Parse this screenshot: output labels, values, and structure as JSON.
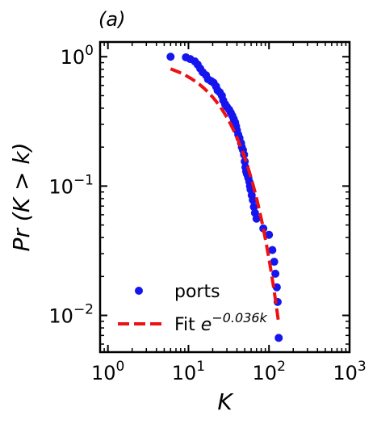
{
  "chart_data": {
    "type": "scatter",
    "panel_label": "(a)",
    "xlabel": "K",
    "ylabel": "Pr (K > k)",
    "xscale": "log",
    "yscale": "log",
    "xlim": [
      0.8,
      1000
    ],
    "ylim": [
      0.0052,
      1.3
    ],
    "xticks": [
      {
        "value": 1,
        "base": "10",
        "exp": "0"
      },
      {
        "value": 10,
        "base": "10",
        "exp": "1"
      },
      {
        "value": 100,
        "base": "10",
        "exp": "2"
      },
      {
        "value": 1000,
        "base": "10",
        "exp": "3"
      }
    ],
    "yticks": [
      {
        "value": 0.01,
        "base": "10",
        "exp": "−2"
      },
      {
        "value": 0.1,
        "base": "10",
        "exp": "−1"
      },
      {
        "value": 1,
        "base": "10",
        "exp": "0"
      }
    ],
    "grid": false,
    "legend_position": "bottom-left",
    "series": [
      {
        "name": "ports",
        "kind": "scatter",
        "color": "#1515f0",
        "points": [
          [
            6,
            1.0
          ],
          [
            9.3,
            0.99
          ],
          [
            10.5,
            0.96
          ],
          [
            12,
            0.92
          ],
          [
            13,
            0.87
          ],
          [
            14,
            0.81
          ],
          [
            15,
            0.76
          ],
          [
            16.5,
            0.72
          ],
          [
            17.5,
            0.67
          ],
          [
            19,
            0.65
          ],
          [
            20.5,
            0.63
          ],
          [
            22,
            0.59
          ],
          [
            23,
            0.55
          ],
          [
            24.5,
            0.53
          ],
          [
            26,
            0.5
          ],
          [
            27,
            0.46
          ],
          [
            28.5,
            0.43
          ],
          [
            30,
            0.41
          ],
          [
            32,
            0.39
          ],
          [
            33.5,
            0.37
          ],
          [
            35,
            0.35
          ],
          [
            36.5,
            0.33
          ],
          [
            38,
            0.31
          ],
          [
            39,
            0.29
          ],
          [
            40,
            0.27
          ],
          [
            41.5,
            0.25
          ],
          [
            43,
            0.235
          ],
          [
            45,
            0.215
          ],
          [
            46,
            0.2
          ],
          [
            47.5,
            0.19
          ],
          [
            49,
            0.175
          ],
          [
            50,
            0.155
          ],
          [
            51,
            0.14
          ],
          [
            52,
            0.13
          ],
          [
            53,
            0.125
          ],
          [
            54.5,
            0.12
          ],
          [
            55.5,
            0.115
          ],
          [
            57,
            0.108
          ],
          [
            58,
            0.1
          ],
          [
            59,
            0.094
          ],
          [
            61,
            0.085
          ],
          [
            63,
            0.078
          ],
          [
            65,
            0.069
          ],
          [
            67,
            0.062
          ],
          [
            70,
            0.056
          ],
          [
            85,
            0.047
          ],
          [
            100,
            0.042
          ],
          [
            110,
            0.032
          ],
          [
            116,
            0.026
          ],
          [
            120,
            0.021
          ],
          [
            125,
            0.0165
          ],
          [
            128,
            0.0127
          ],
          [
            132,
            0.0067
          ]
        ]
      },
      {
        "name": "Fit",
        "name_expr_base": "e",
        "name_expr_exp": "−0.036k",
        "kind": "line",
        "style": "dashed",
        "color": "#ee1111",
        "function": "exp",
        "coefficient": -0.036,
        "x_range": [
          6,
          132
        ]
      }
    ]
  }
}
